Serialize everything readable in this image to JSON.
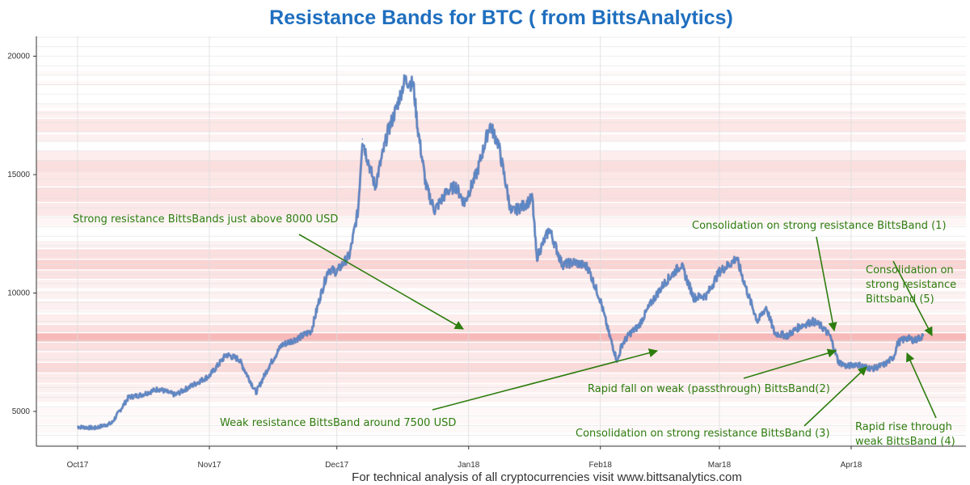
{
  "chart_data": {
    "type": "line",
    "title": "Resistance Bands for BTC ( from BittsAnalytics)",
    "footer": "For technical analysis of all cryptocurrencies visit www.bittsanalytics.com",
    "xlabel": "",
    "ylabel": "",
    "y_ticks": [
      5000,
      10000,
      15000,
      20000
    ],
    "ylim": [
      3500,
      20800
    ],
    "x_ticks": [
      {
        "label": "Oct17",
        "date": "2017-10-01"
      },
      {
        "label": "Nov17",
        "date": "2017-11-01"
      },
      {
        "label": "Dec17",
        "date": "2017-12-01"
      },
      {
        "label": "Jan18",
        "date": "2018-01-01"
      },
      {
        "label": "Feb18",
        "date": "2018-02-01"
      },
      {
        "label": "Mar18",
        "date": "2018-03-01"
      },
      {
        "label": "Apr18",
        "date": "2018-04-01"
      }
    ],
    "grid": true,
    "colors": {
      "price_line": "#5b86c4",
      "band": "#f08080",
      "annotation": "#2e7d0f",
      "title": "#1f6fbf"
    },
    "series": [
      {
        "x": [
          "2017-10-01",
          "2017-10-05",
          "2017-10-09",
          "2017-10-13",
          "2017-10-16",
          "2017-10-20",
          "2017-10-24",
          "2017-10-28",
          "2017-11-01",
          "2017-11-05",
          "2017-11-08",
          "2017-11-10",
          "2017-11-12",
          "2017-11-15",
          "2017-11-18",
          "2017-11-22",
          "2017-11-25",
          "2017-11-27",
          "2017-11-29",
          "2017-12-01",
          "2017-12-04",
          "2017-12-06",
          "2017-12-07",
          "2017-12-08",
          "2017-12-10",
          "2017-12-13",
          "2017-12-15",
          "2017-12-17",
          "2017-12-19",
          "2017-12-20",
          "2017-12-22",
          "2017-12-24",
          "2017-12-27",
          "2017-12-29",
          "2017-12-31",
          "2018-01-03",
          "2018-01-06",
          "2018-01-08",
          "2018-01-11",
          "2018-01-14",
          "2018-01-16",
          "2018-01-17",
          "2018-01-20",
          "2018-01-23",
          "2018-01-26",
          "2018-01-29",
          "2018-02-01",
          "2018-02-03",
          "2018-02-05",
          "2018-02-06",
          "2018-02-08",
          "2018-02-10",
          "2018-02-13",
          "2018-02-16",
          "2018-02-19",
          "2018-02-20",
          "2018-02-23",
          "2018-02-26",
          "2018-03-01",
          "2018-03-04",
          "2018-03-05",
          "2018-03-08",
          "2018-03-10",
          "2018-03-12",
          "2018-03-14",
          "2018-03-17",
          "2018-03-20",
          "2018-03-23",
          "2018-03-25",
          "2018-03-27",
          "2018-03-29",
          "2018-03-31",
          "2018-04-02",
          "2018-04-06",
          "2018-04-09",
          "2018-04-11",
          "2018-04-12",
          "2018-04-14",
          "2018-04-16",
          "2018-04-18"
        ],
        "y": [
          4350,
          4300,
          4500,
          5600,
          5700,
          5950,
          5700,
          6100,
          6500,
          7400,
          7200,
          6500,
          5800,
          6900,
          7800,
          8100,
          8400,
          9800,
          11000,
          10900,
          11600,
          13500,
          16500,
          15800,
          14500,
          16800,
          17800,
          19000,
          18800,
          17000,
          14500,
          13500,
          14300,
          14500,
          13800,
          15100,
          17100,
          16300,
          13400,
          13700,
          14000,
          11500,
          12700,
          11200,
          11300,
          11100,
          9700,
          8300,
          7100,
          7800,
          8300,
          8600,
          9600,
          10400,
          11000,
          11200,
          9800,
          9900,
          10900,
          11300,
          11500,
          9800,
          8800,
          9400,
          8300,
          8200,
          8600,
          8800,
          8600,
          8200,
          7100,
          6900,
          7000,
          6800,
          7000,
          7300,
          7900,
          8100,
          8000,
          8200
        ]
      }
    ],
    "bands": [
      {
        "low": 19200,
        "high": 19400,
        "strength": 0.05
      },
      {
        "low": 18750,
        "high": 18950,
        "strength": 0.06
      },
      {
        "low": 17800,
        "high": 18000,
        "strength": 0.05
      },
      {
        "low": 17400,
        "high": 17700,
        "strength": 0.12
      },
      {
        "low": 16800,
        "high": 17350,
        "strength": 0.2
      },
      {
        "low": 16400,
        "high": 16700,
        "strength": 0.12
      },
      {
        "low": 15600,
        "high": 16000,
        "strength": 0.14
      },
      {
        "low": 15100,
        "high": 15600,
        "strength": 0.26
      },
      {
        "low": 14500,
        "high": 15100,
        "strength": 0.2
      },
      {
        "low": 13850,
        "high": 14450,
        "strength": 0.26
      },
      {
        "low": 13250,
        "high": 13800,
        "strength": 0.18
      },
      {
        "low": 12850,
        "high": 13200,
        "strength": 0.08
      },
      {
        "low": 11900,
        "high": 12200,
        "strength": 0.1
      },
      {
        "low": 11450,
        "high": 11850,
        "strength": 0.25
      },
      {
        "low": 11000,
        "high": 11400,
        "strength": 0.35
      },
      {
        "low": 10600,
        "high": 10950,
        "strength": 0.22
      },
      {
        "low": 10200,
        "high": 10550,
        "strength": 0.12
      },
      {
        "low": 9750,
        "high": 10100,
        "strength": 0.1
      },
      {
        "low": 9250,
        "high": 9650,
        "strength": 0.12
      },
      {
        "low": 8700,
        "high": 9100,
        "strength": 0.14
      },
      {
        "low": 8350,
        "high": 8650,
        "strength": 0.25
      },
      {
        "low": 7950,
        "high": 8300,
        "strength": 0.55
      },
      {
        "low": 7550,
        "high": 7900,
        "strength": 0.25
      },
      {
        "low": 7100,
        "high": 7500,
        "strength": 0.18
      },
      {
        "low": 6650,
        "high": 7050,
        "strength": 0.3
      },
      {
        "low": 6200,
        "high": 6600,
        "strength": 0.16
      },
      {
        "low": 5800,
        "high": 6150,
        "strength": 0.12
      },
      {
        "low": 5400,
        "high": 5750,
        "strength": 0.1
      },
      {
        "low": 4850,
        "high": 5150,
        "strength": 0.06
      },
      {
        "low": 4450,
        "high": 4750,
        "strength": 0.06
      },
      {
        "low": 4100,
        "high": 4400,
        "strength": 0.05
      }
    ],
    "annotations": [
      {
        "lines": [
          "Strong resistance BittsBands just above 8000 USD"
        ],
        "anchor": "start",
        "tx": 90,
        "ty": 275,
        "ax1": 370,
        "ay1": 290,
        "ax2": 573,
        "ay2": 407
      },
      {
        "lines": [
          "Weak resistance BittsBand around 7500 USD"
        ],
        "anchor": "start",
        "tx": 272,
        "ty": 527,
        "ax1": 535,
        "ay1": 507,
        "ax2": 813,
        "ay2": 434
      },
      {
        "lines": [
          "Rapid fall on weak (passthrough) BittsBand(2)"
        ],
        "anchor": "start",
        "tx": 727,
        "ty": 485,
        "ax1": 920,
        "ay1": 468,
        "ax2": 1034,
        "ay2": 434
      },
      {
        "lines": [
          "Consolidation on strong resistance BittsBand (1)"
        ],
        "anchor": "start",
        "tx": 856,
        "ty": 283,
        "ax1": 1010,
        "ay1": 293,
        "ax2": 1032,
        "ay2": 409
      },
      {
        "lines": [
          "Consolidation on strong resistance BittsBand  (3)"
        ],
        "anchor": "start",
        "tx": 712,
        "ty": 540,
        "ax1": 995,
        "ay1": 527,
        "ax2": 1072,
        "ay2": 454
      },
      {
        "lines": [
          "Consolidation on",
          "strong resistance",
          "Bittsband (5)"
        ],
        "anchor": "start",
        "tx": 1071,
        "ty": 338,
        "ax1": 1105,
        "ay1": 323,
        "ax2": 1153,
        "ay2": 415
      },
      {
        "lines": [
          "Rapid rise through",
          "weak BittsBand  (4)"
        ],
        "anchor": "start",
        "tx": 1058,
        "ty": 532,
        "ax1": 1158,
        "ay1": 517,
        "ax2": 1122,
        "ay2": 437
      }
    ]
  }
}
